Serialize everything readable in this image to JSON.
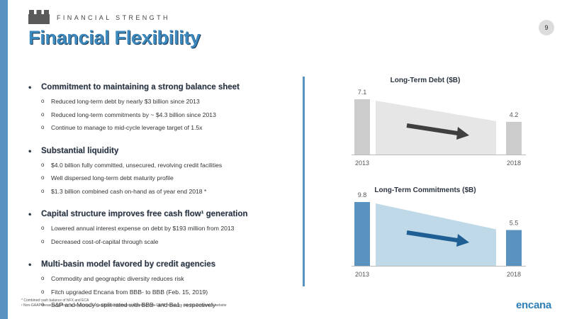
{
  "header": {
    "eyebrow": "FINANCIAL STRENGTH",
    "title": "Financial Flexibility",
    "page_number": "9"
  },
  "bullets": [
    {
      "head": "Commitment to maintaining a strong balance sheet",
      "subs": [
        "Reduced long-term debt by nearly $3 billion since 2013",
        "Reduced long-term commitments by ~ $4.3 billion since 2013",
        "Continue to manage to mid-cycle leverage target of 1.5x"
      ]
    },
    {
      "head": "Substantial liquidity",
      "subs": [
        "$4.0 billion fully committed, unsecured, revolving credit facilities",
        "Well dispersed long-term debt maturity profile",
        "$1.3 billion combined cash on-hand as of year end 2018 *"
      ]
    },
    {
      "head": "Capital structure improves free cash flow¹ generation",
      "subs": [
        "Lowered annual interest expense on debt by $193 million from 2013",
        "Decreased cost-of-capital through scale"
      ]
    },
    {
      "head": "Multi-basin model favored by credit agencies",
      "subs": [
        "Commodity and geographic diversity reduces risk",
        "Fitch upgraded Encana from BBB- to BBB (Feb. 15, 2019)",
        "S&P and Moody's split rated with BBB- and Ba1, respectively"
      ]
    }
  ],
  "chart_data": [
    {
      "type": "bar",
      "title": "Long-Term Debt ($B)",
      "categories": [
        "2013",
        "2018"
      ],
      "values": [
        7.1,
        4.2
      ],
      "value_labels": [
        "7.1",
        "4.2"
      ],
      "bar_color": "#cccccc",
      "trend_color": "#e6e6e6",
      "arrow_color": "#3f3f3f"
    },
    {
      "type": "bar",
      "title": "Long-Term Commitments ($B)",
      "categories": [
        "2013",
        "2018"
      ],
      "values": [
        9.8,
        5.5
      ],
      "value_labels": [
        "9.8",
        "5.5"
      ],
      "bar_color": "#5b93c0",
      "trend_color": "#c0d9e8",
      "arrow_color": "#1f5f94"
    }
  ],
  "footnotes": {
    "line1": "* Combined cash balance of NFX and ECA",
    "line2": "¹ Non-GAAP measure; defined in advisories. For additional information regarding non-GAAP measures see the Company's website"
  },
  "brand": "encana"
}
